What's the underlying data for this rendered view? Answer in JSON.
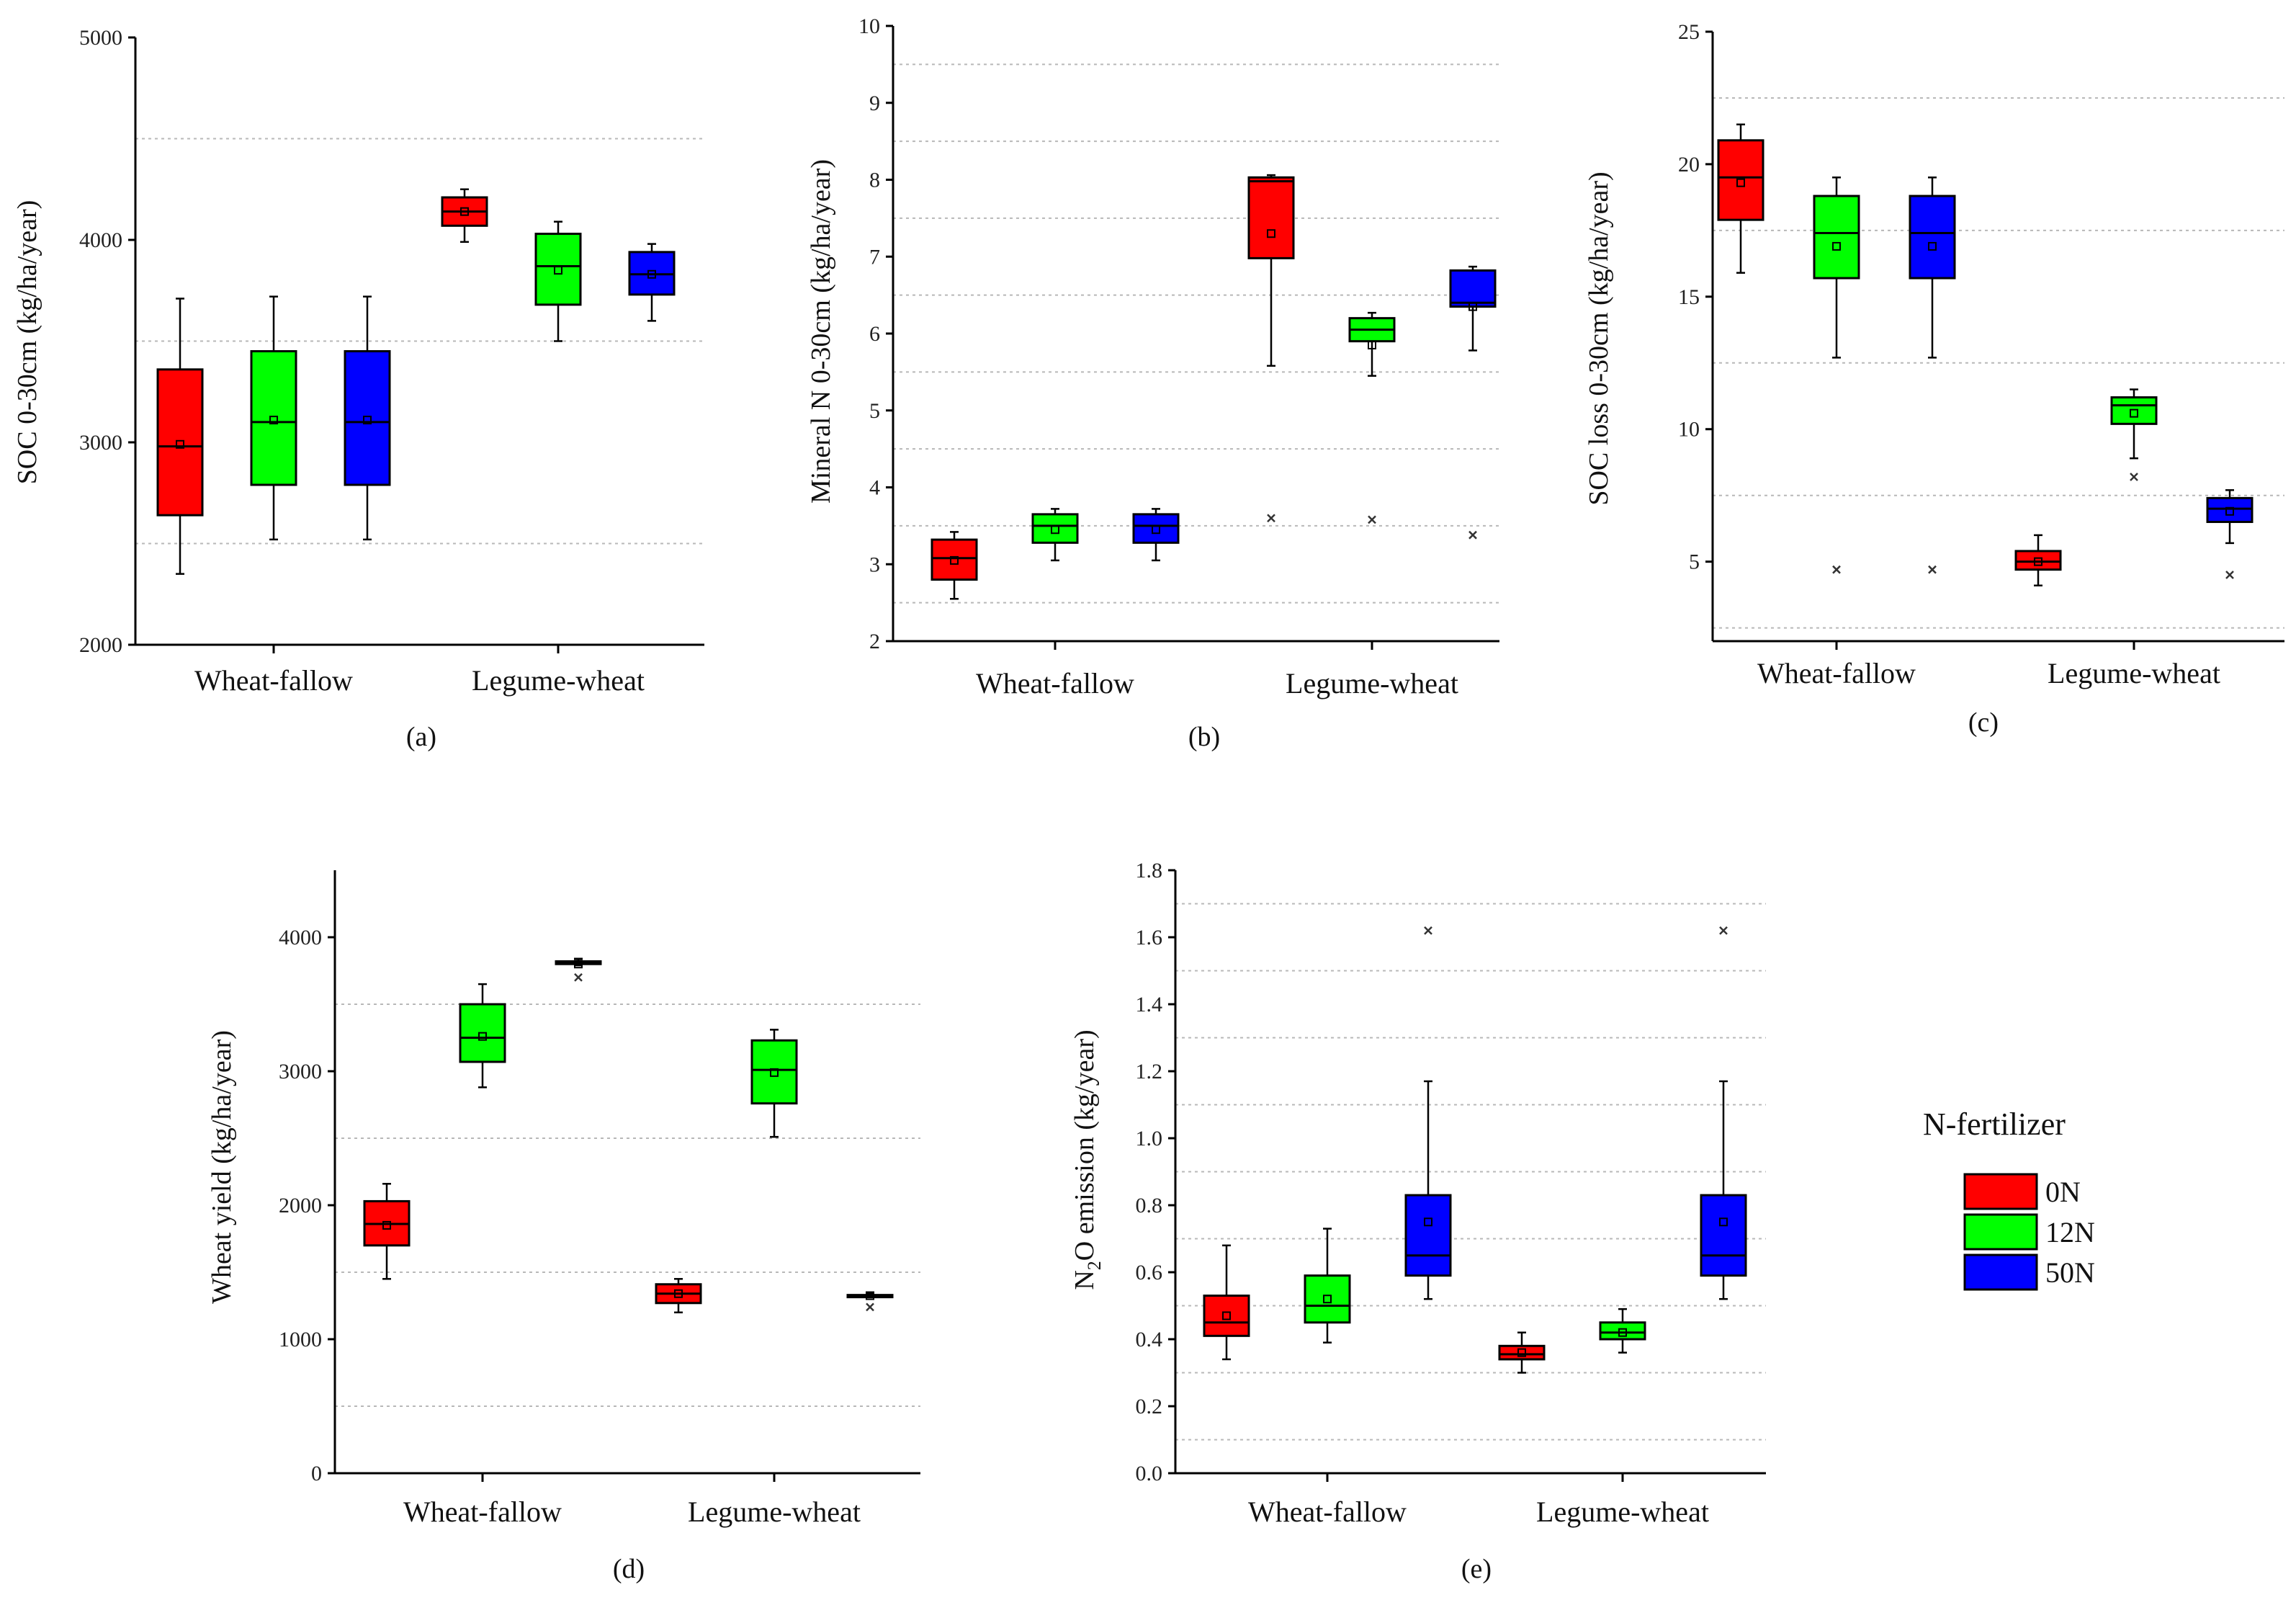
{
  "legend": {
    "title": "N-fertilizer",
    "items": [
      {
        "label": "0N",
        "color": "#ff0000"
      },
      {
        "label": "12N",
        "color": "#00ff00"
      },
      {
        "label": "50N",
        "color": "#0000ff"
      }
    ]
  },
  "chart_data": [
    {
      "type": "box",
      "panel_label": "(a)",
      "ylabel": "SOC 0-30cm (kg/ha/year)",
      "ylim": [
        2000,
        5000
      ],
      "yticks": [
        "2000",
        "3000",
        "4000",
        "5000"
      ],
      "grid": [
        2500,
        3500,
        4500
      ],
      "categories": [
        "Wheat-fallow",
        "Legume-wheat"
      ],
      "series": [
        {
          "name": "0N",
          "boxes": [
            {
              "whislo": 2350,
              "q1": 2640,
              "med": 2980,
              "q3": 3360,
              "whishi": 3710,
              "mean": 2990,
              "fliers": []
            },
            {
              "whislo": 3990,
              "q1": 4070,
              "med": 4140,
              "q3": 4210,
              "whishi": 4250,
              "mean": 4140,
              "fliers": []
            }
          ]
        },
        {
          "name": "12N",
          "boxes": [
            {
              "whislo": 2520,
              "q1": 2790,
              "med": 3100,
              "q3": 3450,
              "whishi": 3720,
              "mean": 3110,
              "fliers": []
            },
            {
              "whislo": 3500,
              "q1": 3680,
              "med": 3870,
              "q3": 4030,
              "whishi": 4090,
              "mean": 3850,
              "fliers": []
            }
          ]
        },
        {
          "name": "50N",
          "boxes": [
            {
              "whislo": 2520,
              "q1": 2790,
              "med": 3100,
              "q3": 3450,
              "whishi": 3720,
              "mean": 3110,
              "fliers": []
            },
            {
              "whislo": 3600,
              "q1": 3730,
              "med": 3830,
              "q3": 3940,
              "whishi": 3980,
              "mean": 3830,
              "fliers": []
            }
          ]
        }
      ]
    },
    {
      "type": "box",
      "panel_label": "(b)",
      "ylabel": "Mineral N 0-30cm (kg/ha/year)",
      "ylim": [
        2,
        10
      ],
      "yticks": [
        "2",
        "3",
        "4",
        "5",
        "6",
        "7",
        "8",
        "9",
        "10"
      ],
      "grid": [
        2.5,
        3.5,
        4.5,
        5.5,
        6.5,
        7.5,
        8.5,
        9.5
      ],
      "categories": [
        "Wheat-fallow",
        "Legume-wheat"
      ],
      "series": [
        {
          "name": "0N",
          "boxes": [
            {
              "whislo": 2.55,
              "q1": 2.8,
              "med": 3.08,
              "q3": 3.32,
              "whishi": 3.42,
              "mean": 3.05,
              "fliers": []
            },
            {
              "whislo": 5.58,
              "q1": 6.98,
              "med": 7.98,
              "q3": 8.03,
              "whishi": 8.06,
              "mean": 7.3,
              "fliers": [
                3.6
              ]
            }
          ]
        },
        {
          "name": "12N",
          "boxes": [
            {
              "whislo": 3.05,
              "q1": 3.28,
              "med": 3.5,
              "q3": 3.65,
              "whishi": 3.72,
              "mean": 3.45,
              "fliers": []
            },
            {
              "whislo": 5.45,
              "q1": 5.9,
              "med": 6.05,
              "q3": 6.2,
              "whishi": 6.27,
              "mean": 5.85,
              "fliers": [
                3.58
              ]
            }
          ]
        },
        {
          "name": "50N",
          "boxes": [
            {
              "whislo": 3.05,
              "q1": 3.28,
              "med": 3.5,
              "q3": 3.65,
              "whishi": 3.72,
              "mean": 3.45,
              "fliers": []
            },
            {
              "whislo": 5.78,
              "q1": 6.35,
              "med": 6.4,
              "q3": 6.82,
              "whishi": 6.87,
              "mean": 6.35,
              "fliers": [
                3.38
              ]
            }
          ]
        }
      ]
    },
    {
      "type": "box",
      "panel_label": "(c)",
      "ylabel": "SOC loss 0-30cm (kg/ha/year)",
      "ylim": [
        2,
        25
      ],
      "yticks": [
        "5",
        "10",
        "15",
        "20",
        "25"
      ],
      "ytick_values": [
        5,
        10,
        15,
        20,
        25
      ],
      "grid": [
        2.5,
        7.5,
        12.5,
        17.5,
        22.5
      ],
      "categories": [
        "Wheat-fallow",
        "Legume-wheat"
      ],
      "series": [
        {
          "name": "0N",
          "boxes": [
            {
              "whislo": 15.9,
              "q1": 17.9,
              "med": 19.5,
              "q3": 20.9,
              "whishi": 21.5,
              "mean": 19.3,
              "fliers": []
            },
            {
              "whislo": 4.1,
              "q1": 4.7,
              "med": 5.0,
              "q3": 5.4,
              "whishi": 6.0,
              "mean": 5.0,
              "fliers": []
            }
          ]
        },
        {
          "name": "12N",
          "boxes": [
            {
              "whislo": 12.7,
              "q1": 15.7,
              "med": 17.4,
              "q3": 18.8,
              "whishi": 19.5,
              "mean": 16.9,
              "fliers": [
                4.7
              ]
            },
            {
              "whislo": 8.9,
              "q1": 10.2,
              "med": 10.9,
              "q3": 11.2,
              "whishi": 11.5,
              "mean": 10.6,
              "fliers": [
                8.2
              ]
            }
          ]
        },
        {
          "name": "50N",
          "boxes": [
            {
              "whislo": 12.7,
              "q1": 15.7,
              "med": 17.4,
              "q3": 18.8,
              "whishi": 19.5,
              "mean": 16.9,
              "fliers": [
                4.7
              ]
            },
            {
              "whislo": 5.7,
              "q1": 6.5,
              "med": 7.0,
              "q3": 7.4,
              "whishi": 7.7,
              "mean": 6.9,
              "fliers": [
                4.5
              ]
            }
          ]
        }
      ]
    },
    {
      "type": "box",
      "panel_label": "(d)",
      "ylabel": "Wheat yield (kg/ha/year)",
      "ylim": [
        0,
        4500
      ],
      "yticks": [
        "0",
        "1000",
        "2000",
        "3000",
        "4000"
      ],
      "ytick_values": [
        0,
        1000,
        2000,
        3000,
        4000
      ],
      "grid": [
        500,
        1500,
        2500,
        3500
      ],
      "categories": [
        "Wheat-fallow",
        "Legume-wheat"
      ],
      "series": [
        {
          "name": "0N",
          "boxes": [
            {
              "whislo": 1450,
              "q1": 1700,
              "med": 1860,
              "q3": 2030,
              "whishi": 2160,
              "mean": 1850,
              "fliers": []
            },
            {
              "whislo": 1200,
              "q1": 1270,
              "med": 1340,
              "q3": 1410,
              "whishi": 1450,
              "mean": 1340,
              "fliers": []
            }
          ]
        },
        {
          "name": "12N",
          "boxes": [
            {
              "whislo": 2880,
              "q1": 3070,
              "med": 3250,
              "q3": 3500,
              "whishi": 3650,
              "mean": 3260,
              "fliers": []
            },
            {
              "whislo": 2510,
              "q1": 2760,
              "med": 3010,
              "q3": 3230,
              "whishi": 3310,
              "mean": 2990,
              "fliers": []
            }
          ]
        },
        {
          "name": "50N",
          "boxes": [
            {
              "whislo": 3790,
              "q1": 3800,
              "med": 3810,
              "q3": 3820,
              "whishi": 3840,
              "mean": 3800,
              "fliers": [
                3700
              ]
            },
            {
              "whislo": 1320,
              "q1": 1320,
              "med": 1325,
              "q3": 1330,
              "whishi": 1340,
              "mean": 1325,
              "fliers": [
                1240
              ]
            }
          ]
        }
      ]
    },
    {
      "type": "box",
      "panel_label": "(e)",
      "ylabel": "N2O emission (kg/year)",
      "ylabel_parts": [
        "N",
        "2",
        "O emission (kg/year)"
      ],
      "ylim": [
        0,
        1.8
      ],
      "yticks": [
        "0.0",
        "0.2",
        "0.4",
        "0.6",
        "0.8",
        "1.0",
        "1.2",
        "1.4",
        "1.6",
        "1.8"
      ],
      "grid": [
        0.1,
        0.3,
        0.5,
        0.7,
        0.9,
        1.1,
        1.3,
        1.5,
        1.7
      ],
      "categories": [
        "Wheat-fallow",
        "Legume-wheat"
      ],
      "series": [
        {
          "name": "0N",
          "boxes": [
            {
              "whislo": 0.34,
              "q1": 0.41,
              "med": 0.45,
              "q3": 0.53,
              "whishi": 0.68,
              "mean": 0.47,
              "fliers": []
            },
            {
              "whislo": 0.3,
              "q1": 0.34,
              "med": 0.355,
              "q3": 0.38,
              "whishi": 0.42,
              "mean": 0.36,
              "fliers": []
            }
          ]
        },
        {
          "name": "12N",
          "boxes": [
            {
              "whislo": 0.39,
              "q1": 0.45,
              "med": 0.5,
              "q3": 0.59,
              "whishi": 0.73,
              "mean": 0.52,
              "fliers": []
            },
            {
              "whislo": 0.36,
              "q1": 0.4,
              "med": 0.42,
              "q3": 0.45,
              "whishi": 0.49,
              "mean": 0.42,
              "fliers": []
            }
          ]
        },
        {
          "name": "50N",
          "boxes": [
            {
              "whislo": 0.52,
              "q1": 0.59,
              "med": 0.65,
              "q3": 0.83,
              "whishi": 1.17,
              "mean": 0.75,
              "fliers": [
                1.62
              ]
            },
            {
              "whislo": 0.52,
              "q1": 0.59,
              "med": 0.65,
              "q3": 0.83,
              "whishi": 1.17,
              "mean": 0.75,
              "fliers": [
                1.62
              ]
            }
          ]
        }
      ]
    }
  ]
}
